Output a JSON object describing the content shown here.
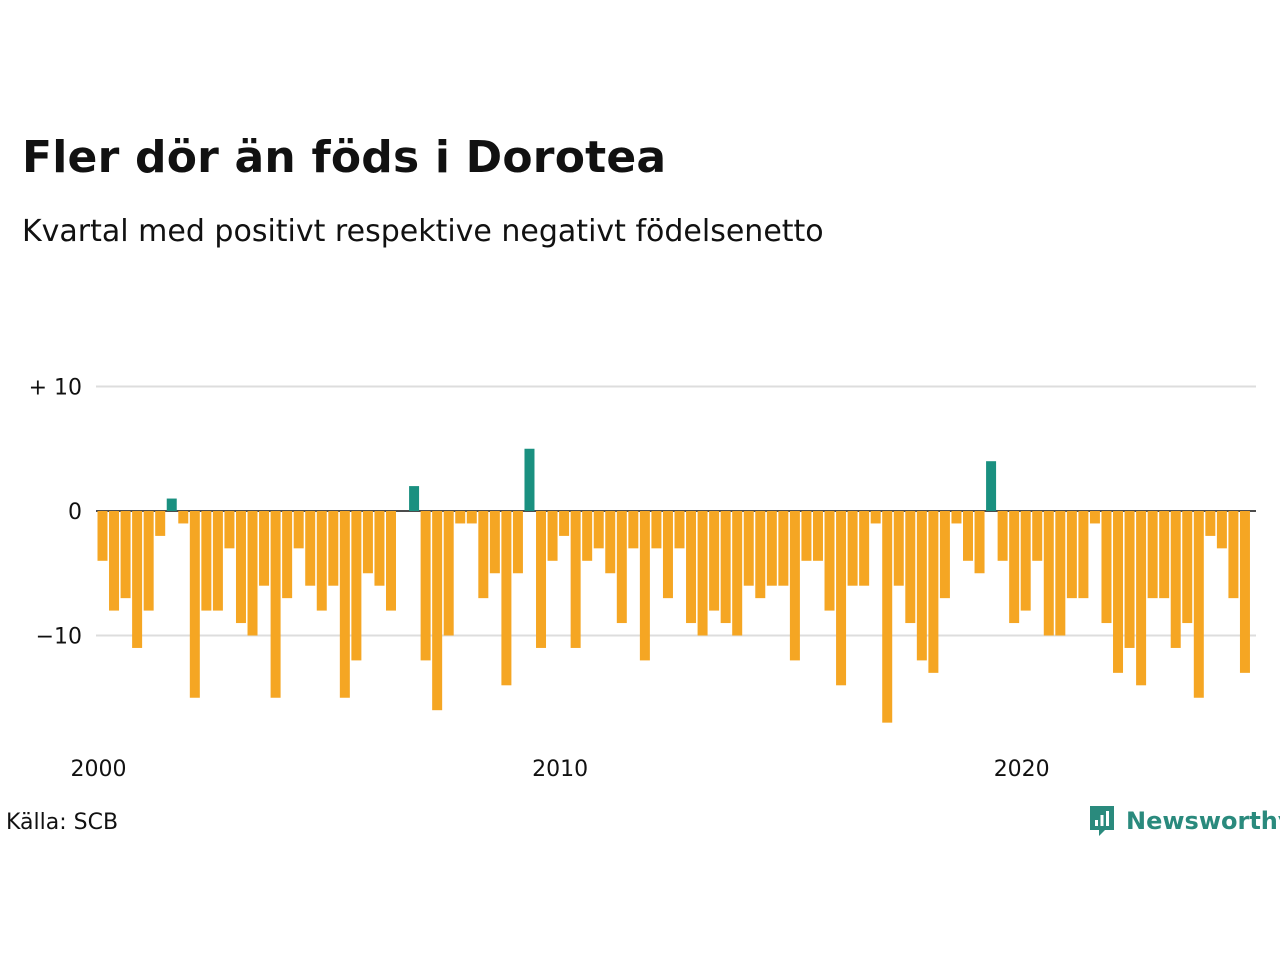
{
  "header": {
    "title": "Fler dör än föds i Dorotea",
    "subtitle": "Kvartal med positivt respektive negativt födelsenetto"
  },
  "footer": {
    "source": "Källa: SCB",
    "brand": "Newsworthy"
  },
  "colors": {
    "positive": "#1a9080",
    "negative": "#f5a623",
    "grid": "#dddddd",
    "zero_line": "#111111",
    "brand": "#2a8a7d"
  },
  "chart_data": {
    "type": "bar",
    "x_start": "2000-Q1",
    "values": [
      -4,
      -8,
      -7,
      -11,
      -8,
      -2,
      1,
      -1,
      -15,
      -8,
      -8,
      -3,
      -9,
      -10,
      -6,
      -15,
      -7,
      -3,
      -6,
      -8,
      -6,
      -15,
      -12,
      -5,
      -6,
      -8,
      0,
      2,
      -12,
      -16,
      -10,
      -1,
      -1,
      -7,
      -5,
      -14,
      -5,
      5,
      -11,
      -4,
      -2,
      -11,
      -4,
      -3,
      -5,
      -9,
      -3,
      -12,
      -3,
      -7,
      -3,
      -9,
      -10,
      -8,
      -9,
      -10,
      -6,
      -7,
      -6,
      -6,
      -12,
      -4,
      -4,
      -8,
      -14,
      -6,
      -6,
      -1,
      -17,
      -6,
      -9,
      -12,
      -13,
      -7,
      -1,
      -4,
      -5,
      4,
      -4,
      -9,
      -8,
      -4,
      -10,
      -10,
      -7,
      -7,
      -1,
      -9,
      -13,
      -11,
      -14,
      -7,
      -7,
      -11,
      -9,
      -15,
      -2,
      -3,
      -7,
      -13
    ],
    "ylim": [
      -17,
      10
    ],
    "y_ticks": [
      {
        "value": 10,
        "label": "+ 10"
      },
      {
        "value": 0,
        "label": "0"
      },
      {
        "value": -10,
        "label": "−10"
      }
    ],
    "x_ticks": [
      {
        "index": 0,
        "label": "2000"
      },
      {
        "index": 40,
        "label": "2010"
      },
      {
        "index": 80,
        "label": "2020"
      }
    ],
    "grid": true
  }
}
